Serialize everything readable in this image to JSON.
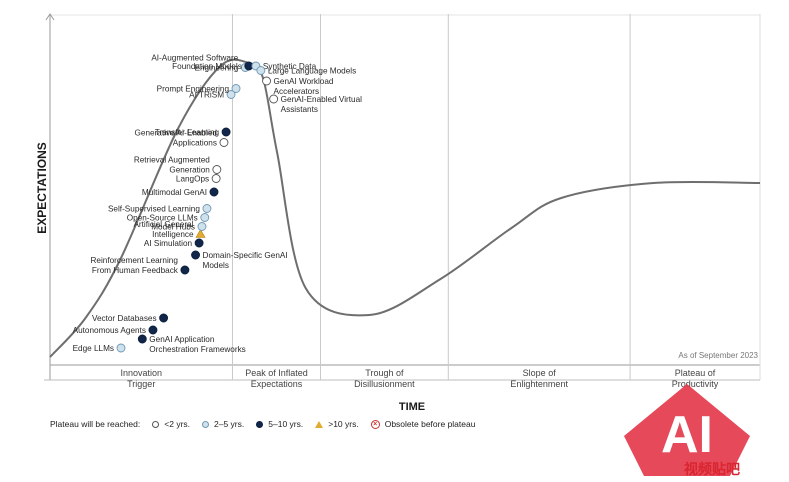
{
  "chart_data": {
    "type": "scatter",
    "title": "",
    "ylabel": "EXPECTATIONS",
    "xlabel": "TIME",
    "as_of": "As of September 2023",
    "phases": [
      [
        "Innovation",
        "Trigger"
      ],
      [
        "Peak of Inflated",
        "Expectations"
      ],
      [
        "Trough of",
        "Disillusionment"
      ],
      [
        "Slope of",
        "Enlightenment"
      ],
      [
        "Plateau of",
        "Productivity"
      ]
    ],
    "curve": {
      "x": [
        0.0,
        0.05,
        0.1,
        0.18,
        0.24,
        0.28,
        0.3,
        0.32,
        0.36,
        0.45,
        0.55,
        0.65,
        0.72,
        0.85,
        1.0
      ],
      "y": [
        0.02,
        0.15,
        0.35,
        0.78,
        0.99,
        1.0,
        0.95,
        0.7,
        0.25,
        0.16,
        0.28,
        0.45,
        0.55,
        0.6,
        0.6
      ]
    },
    "technologies": [
      {
        "name": "Edge LLMs",
        "x": 0.1,
        "y": 0.05,
        "cat": "2-5",
        "side": "left"
      },
      {
        "name": "GenAI Application Orchestration Frameworks",
        "x": 0.13,
        "y": 0.08,
        "cat": "5-10",
        "side": "right"
      },
      {
        "name": "Autonomous Agents",
        "x": 0.145,
        "y": 0.11,
        "cat": "5-10",
        "side": "left"
      },
      {
        "name": "Vector Databases",
        "x": 0.16,
        "y": 0.15,
        "cat": "5-10",
        "side": "left"
      },
      {
        "name": "Reinforcement Learning From Human Feedback",
        "x": 0.19,
        "y": 0.31,
        "cat": "5-10",
        "side": "left"
      },
      {
        "name": "Domain-Specific GenAI Models",
        "x": 0.205,
        "y": 0.36,
        "cat": "5-10",
        "side": "right"
      },
      {
        "name": "AI Simulation",
        "x": 0.21,
        "y": 0.4,
        "cat": "5-10",
        "side": "left"
      },
      {
        "name": "Artificial General Intelligence",
        "x": 0.212,
        "y": 0.43,
        "cat": ">10",
        "side": "left"
      },
      {
        "name": "Model Hubs",
        "x": 0.214,
        "y": 0.455,
        "cat": "2-5",
        "side": "left"
      },
      {
        "name": "Open-Source LLMs",
        "x": 0.218,
        "y": 0.485,
        "cat": "2-5",
        "side": "left"
      },
      {
        "name": "Self-Supervised Learning",
        "x": 0.221,
        "y": 0.515,
        "cat": "2-5",
        "side": "left"
      },
      {
        "name": "Multimodal GenAI",
        "x": 0.231,
        "y": 0.57,
        "cat": "5-10",
        "side": "left"
      },
      {
        "name": "LangOps",
        "x": 0.234,
        "y": 0.615,
        "cat": "<2",
        "side": "left"
      },
      {
        "name": "Retrieval Augmented Generation",
        "x": 0.235,
        "y": 0.645,
        "cat": "<2",
        "side": "left"
      },
      {
        "name": "Generative AI-Enabled Applications",
        "x": 0.245,
        "y": 0.735,
        "cat": "<2",
        "side": "left"
      },
      {
        "name": "Transfer Learning",
        "x": 0.248,
        "y": 0.77,
        "cat": "5-10",
        "side": "left"
      },
      {
        "name": "AI TRiSM",
        "x": 0.255,
        "y": 0.895,
        "cat": "2-5",
        "side": "left"
      },
      {
        "name": "Prompt Engineering",
        "x": 0.262,
        "y": 0.915,
        "cat": "2-5",
        "side": "left"
      },
      {
        "name": "AI-Augmented Software Engineering",
        "x": 0.275,
        "y": 0.985,
        "cat": "2-5",
        "side": "left"
      },
      {
        "name": "Foundation Models",
        "x": 0.28,
        "y": 0.99,
        "cat": "5-10",
        "side": "left"
      },
      {
        "name": "Synthetic Data",
        "x": 0.29,
        "y": 0.99,
        "cat": "2-5",
        "side": "right"
      },
      {
        "name": "Large Language Models",
        "x": 0.297,
        "y": 0.975,
        "cat": "2-5",
        "side": "right"
      },
      {
        "name": "GenAI Workload Accelerators",
        "x": 0.305,
        "y": 0.94,
        "cat": "<2",
        "side": "right"
      },
      {
        "name": "GenAI-Enabled Virtual Assistants",
        "x": 0.315,
        "y": 0.88,
        "cat": "<2",
        "side": "right"
      }
    ],
    "legend": {
      "title": "Plateau will be reached:",
      "items": [
        {
          "key": "lt2",
          "label": "<2 yrs."
        },
        {
          "key": "y25",
          "label": "2–5 yrs."
        },
        {
          "key": "y510",
          "label": "5–10 yrs."
        },
        {
          "key": "gt10",
          "label": ">10 yrs."
        },
        {
          "key": "obs",
          "label": "Obsolete before plateau"
        }
      ]
    },
    "colors": {
      "lt2": "#ffffff",
      "2-5": "#cfe2ec",
      "5-10": "#12264a",
      ">10": "#e2ab33",
      "curve": "#6e6e6e"
    },
    "grid": false
  },
  "watermark": {
    "text": "AI",
    "caption": "视频贴吧"
  }
}
